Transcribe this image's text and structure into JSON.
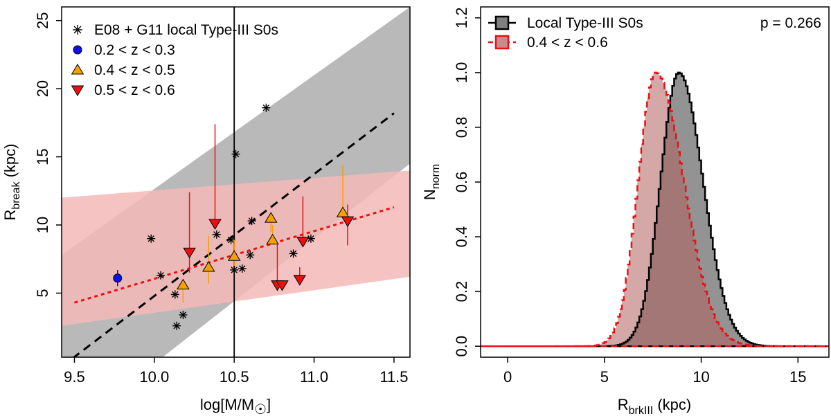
{
  "chart_data": [
    {
      "type": "scatter",
      "xlabel": "log[M/M",
      "xlabel_sym": "☉",
      "xlabel_tail": "]",
      "ylabel": "R",
      "ylabel_sub": "break",
      "ylabel_tail": " (kpc)",
      "xlim": [
        9.42,
        11.6
      ],
      "ylim": [
        0.3,
        26
      ],
      "xticks": [
        9.5,
        10.0,
        10.5,
        11.0,
        11.5
      ],
      "xtick_labels": [
        "9.5",
        "10.0",
        "10.5",
        "11.0",
        "11.5"
      ],
      "yticks": [
        5,
        10,
        15,
        20,
        25
      ],
      "ytick_labels": [
        "5",
        "10",
        "15",
        "20",
        "25"
      ],
      "vline_x": 10.5,
      "legend": [
        {
          "label": "E08 + G11 local Type-III S0s",
          "marker": "asterisk"
        },
        {
          "label": "0.2 < z < 0.3",
          "marker": "circle",
          "color": "#1010e0"
        },
        {
          "label": "0.4 < z < 0.5",
          "marker": "triangle-up",
          "color": "#f5a000"
        },
        {
          "label": "0.5 < z < 0.6",
          "marker": "triangle-down",
          "color": "#e81010"
        }
      ],
      "local_s0s": [
        [
          9.98,
          9.0
        ],
        [
          10.04,
          6.3
        ],
        [
          10.13,
          4.9
        ],
        [
          10.14,
          2.6
        ],
        [
          10.18,
          3.4
        ],
        [
          10.39,
          9.3
        ],
        [
          10.48,
          8.9
        ],
        [
          10.5,
          6.7
        ],
        [
          10.51,
          15.2
        ],
        [
          10.55,
          6.8
        ],
        [
          10.6,
          7.8
        ],
        [
          10.61,
          10.3
        ],
        [
          10.7,
          18.6
        ],
        [
          10.87,
          7.9
        ],
        [
          10.98,
          9.0
        ]
      ],
      "low_z": [
        {
          "x": 9.77,
          "y": 6.1,
          "err": 0.6
        }
      ],
      "mid_z": [
        {
          "x": 10.18,
          "y": 5.6,
          "lo": 4.3,
          "hi": 5.6
        },
        {
          "x": 10.34,
          "y": 6.9,
          "lo": 5.7,
          "hi": 9.2
        },
        {
          "x": 10.5,
          "y": 7.7,
          "lo": 7.0,
          "hi": 8.9
        },
        {
          "x": 10.73,
          "y": 10.5,
          "lo": 9.5,
          "hi": 10.5
        },
        {
          "x": 10.74,
          "y": 8.9,
          "lo": 8.9,
          "hi": 10.0
        },
        {
          "x": 11.18,
          "y": 10.9,
          "lo": 10.9,
          "hi": 14.4
        }
      ],
      "high_z": [
        {
          "x": 10.22,
          "y": 8.0,
          "lo": 6.5,
          "hi": 12.4
        },
        {
          "x": 10.38,
          "y": 10.1,
          "lo": 10.1,
          "hi": 17.4
        },
        {
          "x": 10.77,
          "y": 5.6,
          "lo": 5.6,
          "hi": 8.7
        },
        {
          "x": 10.8,
          "y": 5.6,
          "lo": 5.6,
          "hi": 5.6
        },
        {
          "x": 10.91,
          "y": 6.0,
          "lo": 6.0,
          "hi": 6.9
        },
        {
          "x": 10.93,
          "y": 8.8,
          "lo": 8.8,
          "hi": 12.1
        },
        {
          "x": 11.21,
          "y": 10.3,
          "lo": 8.5,
          "hi": 11.5
        }
      ],
      "fit_local": {
        "x0": 9.42,
        "x1": 11.5,
        "y_at_x0": -0.4,
        "y_at_x1": 18.2,
        "color": "#000000"
      },
      "fit_z": {
        "x0": 9.5,
        "x1": 11.5,
        "y_at_x0": 4.3,
        "y_at_x1": 11.3,
        "color": "#e81010"
      },
      "band_local": {
        "x": [
          9.42,
          11.6
        ],
        "upper": [
          7.8,
          26
        ],
        "lower": [
          -5.5,
          14.5
        ],
        "color": "#b9b9b9"
      },
      "band_z": {
        "x": [
          9.42,
          11.6
        ],
        "upper": [
          12.0,
          14.0
        ],
        "lower": [
          2.6,
          6.2
        ],
        "color": "#f4b8b8"
      }
    },
    {
      "type": "histogram",
      "xlabel": "R",
      "xlabel_sub": "brkIII",
      "xlabel_tail": " (kpc)",
      "ylabel": "N",
      "ylabel_sub": "norm",
      "xlim": [
        -1.4,
        16.6
      ],
      "ylim": [
        -0.04,
        1.24
      ],
      "xticks": [
        0,
        5,
        10,
        15
      ],
      "xtick_labels": [
        "0",
        "5",
        "10",
        "15"
      ],
      "yticks": [
        0.0,
        0.2,
        0.4,
        0.6,
        0.8,
        1.0,
        1.2
      ],
      "ytick_labels": [
        "0.0",
        "0.2",
        "0.4",
        "0.6",
        "0.8",
        "1.0",
        "1.2"
      ],
      "annotation": "p = 0.266",
      "legend": [
        {
          "label": "Local Type-III S0s",
          "color": "#000000",
          "fill": "#808080",
          "dash": false
        },
        {
          "label": "0.4 < z < 0.6",
          "color": "#e81010",
          "fill": "#c98c8c",
          "dash": true
        }
      ],
      "series": [
        {
          "name": "Local Type-III S0s",
          "mean": 8.85,
          "sigma_left": 0.95,
          "sigma_right": 1.25,
          "peak": 1.0
        },
        {
          "name": "0.4 < z < 0.6",
          "mean": 7.65,
          "sigma_left": 0.9,
          "sigma_right": 1.45,
          "peak": 1.0
        }
      ],
      "bin_width": 0.1
    }
  ]
}
